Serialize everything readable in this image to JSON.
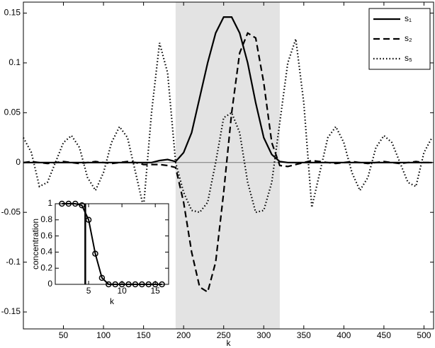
{
  "chart_data": [
    {
      "type": "line",
      "xlabel": "k",
      "x": [
        0,
        10,
        20,
        30,
        40,
        50,
        60,
        70,
        80,
        90,
        100,
        110,
        120,
        130,
        140,
        150,
        160,
        170,
        180,
        190,
        200,
        210,
        220,
        230,
        240,
        250,
        260,
        270,
        280,
        290,
        300,
        310,
        320,
        330,
        340,
        350,
        360,
        370,
        380,
        390,
        400,
        410,
        420,
        430,
        440,
        450,
        460,
        470,
        480,
        490,
        500,
        510
      ],
      "series": [
        {
          "name": "s₁",
          "color": "#000000",
          "linestyle": "solid",
          "values": [
            0,
            0,
            0,
            0,
            0,
            0,
            0,
            0,
            0,
            0,
            0,
            0,
            0,
            0,
            0,
            0,
            0,
            0.002,
            0.003,
            0.001,
            0.01,
            0.03,
            0.065,
            0.1,
            0.13,
            0.146,
            0.146,
            0.13,
            0.1,
            0.06,
            0.025,
            0.008,
            0.001,
            0,
            0,
            0,
            0,
            0,
            0,
            0,
            0,
            0,
            0,
            0,
            0,
            0,
            0,
            0,
            0,
            0,
            0,
            0
          ]
        },
        {
          "name": "s₂",
          "color": "#000000",
          "linestyle": "dashed",
          "values": [
            0,
            0.001,
            0,
            -0.001,
            0,
            0.001,
            0,
            -0.001,
            0,
            0.001,
            0,
            -0.001,
            0,
            0.001,
            0,
            -0.002,
            -0.002,
            -0.002,
            -0.003,
            -0.005,
            -0.04,
            -0.09,
            -0.125,
            -0.13,
            -0.1,
            -0.03,
            0.05,
            0.11,
            0.13,
            0.125,
            0.08,
            0.02,
            -0.003,
            -0.004,
            -0.002,
            0,
            0.002,
            0.001,
            0,
            -0.001,
            0,
            0.001,
            0,
            -0.001,
            0,
            0.001,
            0,
            -0.001,
            0,
            0.001,
            0,
            0
          ]
        },
        {
          "name": "s₅",
          "color": "#000000",
          "linestyle": "dotted",
          "values": [
            0.025,
            0.01,
            -0.024,
            -0.02,
            0,
            0.02,
            0.027,
            0.015,
            -0.015,
            -0.028,
            -0.01,
            0.02,
            0.036,
            0.025,
            -0.01,
            -0.045,
            0.05,
            0.12,
            0.09,
            0,
            -0.03,
            -0.048,
            -0.05,
            -0.04,
            0,
            0.045,
            0.05,
            0.03,
            -0.02,
            -0.05,
            -0.048,
            -0.02,
            0.04,
            0.1,
            0.124,
            0.06,
            -0.045,
            -0.01,
            0.025,
            0.036,
            0.02,
            -0.01,
            -0.028,
            -0.015,
            0.015,
            0.027,
            0.02,
            0,
            -0.02,
            -0.024,
            0.01,
            0.025
          ]
        }
      ],
      "xlim": [
        0,
        512
      ],
      "ylim": [
        -0.167,
        0.161
      ],
      "xticks": [
        50,
        100,
        150,
        200,
        250,
        300,
        350,
        400,
        450,
        500
      ],
      "yticks": [
        -0.15,
        -0.1,
        -0.05,
        0,
        0.05,
        0.1,
        0.15
      ],
      "shade": [
        190,
        320
      ],
      "zeroline": true,
      "legend": "upper right"
    },
    {
      "type": "line",
      "xlabel": "k",
      "ylabel": "concentration",
      "x": [
        1,
        2,
        3,
        4,
        5,
        6,
        7,
        8,
        9,
        10,
        11,
        12,
        13,
        14,
        15,
        16
      ],
      "series": [
        {
          "color": "#000000",
          "linestyle": "solid",
          "marker": "circle",
          "values": [
            1,
            1,
            1,
            0.98,
            0.8,
            0.38,
            0.08,
            0,
            0,
            0,
            0,
            0,
            0,
            0,
            0,
            0
          ]
        }
      ],
      "vline": 4.5,
      "xlim": [
        0,
        17
      ],
      "ylim": [
        0,
        1
      ],
      "xticks": [
        5,
        10,
        15
      ],
      "yticks": [
        0,
        0.2,
        0.4,
        0.6,
        0.8,
        1
      ]
    }
  ]
}
